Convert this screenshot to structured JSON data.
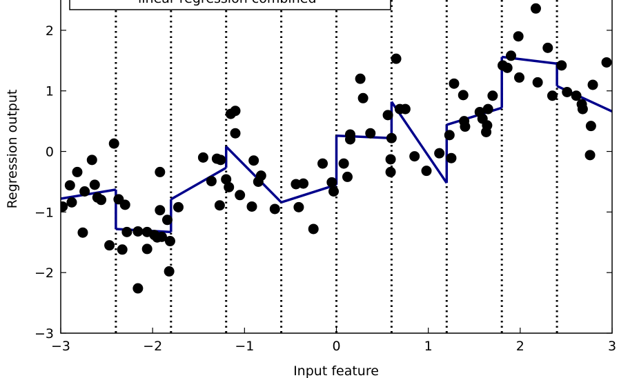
{
  "chart_data": {
    "type": "scatter",
    "xlabel": "Input feature",
    "ylabel": "Regression output",
    "xlim": [
      -3,
      3
    ],
    "ylim": [
      -3,
      2.5
    ],
    "xticks": [
      -3,
      -2,
      -1,
      0,
      1,
      2,
      3
    ],
    "xtick_labels": [
      "−3",
      "−2",
      "−1",
      "0",
      "1",
      "2",
      "3"
    ],
    "yticks": [
      -3,
      -2,
      -1,
      0,
      1,
      2
    ],
    "ytick_labels": [
      "−3",
      "−2",
      "−1",
      "0",
      "1",
      "2"
    ],
    "bin_edges": [
      -2.4,
      -1.8,
      -1.2,
      -0.6,
      0.0,
      0.6,
      1.2,
      1.8,
      2.4
    ],
    "legend_text": "linear regression combined",
    "legend_placement": "top-left",
    "colors": {
      "points": "#000000",
      "regression_line": "#00008b",
      "bin_edges": "#000000"
    },
    "points": [
      [
        -2.98,
        -0.91
      ],
      [
        -2.9,
        -0.56
      ],
      [
        -2.88,
        -0.84
      ],
      [
        -2.82,
        -0.34
      ],
      [
        -2.76,
        -1.34
      ],
      [
        -2.74,
        -0.66
      ],
      [
        -2.66,
        -0.14
      ],
      [
        -2.63,
        -0.55
      ],
      [
        -2.6,
        -0.76
      ],
      [
        -2.56,
        -0.8
      ],
      [
        -2.47,
        -1.55
      ],
      [
        -2.42,
        0.13
      ],
      [
        -2.37,
        -0.79
      ],
      [
        -2.33,
        -1.62
      ],
      [
        -2.3,
        -0.88
      ],
      [
        -2.28,
        -1.33
      ],
      [
        -2.16,
        -2.26
      ],
      [
        -2.16,
        -1.32
      ],
      [
        -2.06,
        -1.61
      ],
      [
        -2.06,
        -1.33
      ],
      [
        -1.98,
        -1.38
      ],
      [
        -1.95,
        -1.42
      ],
      [
        -1.92,
        -0.34
      ],
      [
        -1.92,
        -0.97
      ],
      [
        -1.9,
        -1.41
      ],
      [
        -1.84,
        -1.13
      ],
      [
        -1.82,
        -1.98
      ],
      [
        -1.81,
        -1.48
      ],
      [
        -1.72,
        -0.92
      ],
      [
        -1.45,
        -0.1
      ],
      [
        -1.36,
        -0.49
      ],
      [
        -1.3,
        -0.12
      ],
      [
        -1.27,
        -0.89
      ],
      [
        -1.26,
        -0.14
      ],
      [
        -1.2,
        -0.46
      ],
      [
        -1.17,
        -0.59
      ],
      [
        -1.15,
        0.62
      ],
      [
        -1.1,
        0.67
      ],
      [
        -1.1,
        0.3
      ],
      [
        -1.05,
        -0.72
      ],
      [
        -0.92,
        -0.91
      ],
      [
        -0.9,
        -0.15
      ],
      [
        -0.85,
        -0.5
      ],
      [
        -0.82,
        -0.4
      ],
      [
        -0.67,
        -0.95
      ],
      [
        -0.44,
        -0.54
      ],
      [
        -0.41,
        -0.92
      ],
      [
        -0.36,
        -0.53
      ],
      [
        -0.25,
        -1.28
      ],
      [
        -0.15,
        -0.2
      ],
      [
        -0.05,
        -0.51
      ],
      [
        -0.03,
        -0.66
      ],
      [
        0.08,
        -0.2
      ],
      [
        0.12,
        -0.42
      ],
      [
        0.15,
        0.28
      ],
      [
        0.15,
        0.2
      ],
      [
        0.26,
        1.2
      ],
      [
        0.29,
        0.88
      ],
      [
        0.37,
        0.3
      ],
      [
        0.56,
        0.6
      ],
      [
        0.59,
        -0.13
      ],
      [
        0.59,
        -0.34
      ],
      [
        0.6,
        0.22
      ],
      [
        0.65,
        1.53
      ],
      [
        0.69,
        0.7
      ],
      [
        0.75,
        0.7
      ],
      [
        0.85,
        -0.08
      ],
      [
        0.98,
        -0.32
      ],
      [
        1.12,
        -0.03
      ],
      [
        1.23,
        0.27
      ],
      [
        1.25,
        -0.11
      ],
      [
        1.28,
        1.12
      ],
      [
        1.38,
        0.93
      ],
      [
        1.39,
        0.5
      ],
      [
        1.4,
        0.41
      ],
      [
        1.56,
        0.65
      ],
      [
        1.59,
        0.54
      ],
      [
        1.63,
        0.32
      ],
      [
        1.64,
        0.43
      ],
      [
        1.65,
        0.7
      ],
      [
        1.7,
        0.92
      ],
      [
        1.81,
        1.42
      ],
      [
        1.86,
        1.38
      ],
      [
        1.9,
        1.58
      ],
      [
        1.98,
        1.9
      ],
      [
        1.99,
        1.22
      ],
      [
        2.17,
        2.36
      ],
      [
        2.19,
        1.14
      ],
      [
        2.3,
        1.71
      ],
      [
        2.35,
        0.92
      ],
      [
        2.45,
        1.42
      ],
      [
        2.51,
        0.98
      ],
      [
        2.61,
        0.92
      ],
      [
        2.67,
        0.78
      ],
      [
        2.68,
        0.7
      ],
      [
        2.76,
        -0.06
      ],
      [
        2.77,
        0.42
      ],
      [
        2.79,
        1.1
      ],
      [
        2.94,
        1.47
      ]
    ],
    "regression_segments": [
      {
        "x": [
          -3.0,
          -2.4
        ],
        "y": [
          -0.78,
          -0.63
        ]
      },
      {
        "x": [
          -2.4,
          -1.8
        ],
        "y": [
          -1.28,
          -1.33
        ]
      },
      {
        "x": [
          -1.8,
          -1.2
        ],
        "y": [
          -0.79,
          -0.27
        ]
      },
      {
        "x": [
          -1.2,
          -0.6
        ],
        "y": [
          0.08,
          -0.84
        ]
      },
      {
        "x": [
          -0.6,
          0.0
        ],
        "y": [
          -0.84,
          -0.55
        ]
      },
      {
        "x": [
          0.0,
          0.6
        ],
        "y": [
          0.26,
          0.22
        ]
      },
      {
        "x": [
          0.6,
          1.2
        ],
        "y": [
          0.82,
          -0.52
        ]
      },
      {
        "x": [
          1.2,
          1.8
        ],
        "y": [
          0.44,
          0.72
        ]
      },
      {
        "x": [
          1.8,
          2.4
        ],
        "y": [
          1.56,
          1.45
        ]
      },
      {
        "x": [
          2.4,
          3.0
        ],
        "y": [
          1.08,
          0.66
        ]
      }
    ]
  }
}
